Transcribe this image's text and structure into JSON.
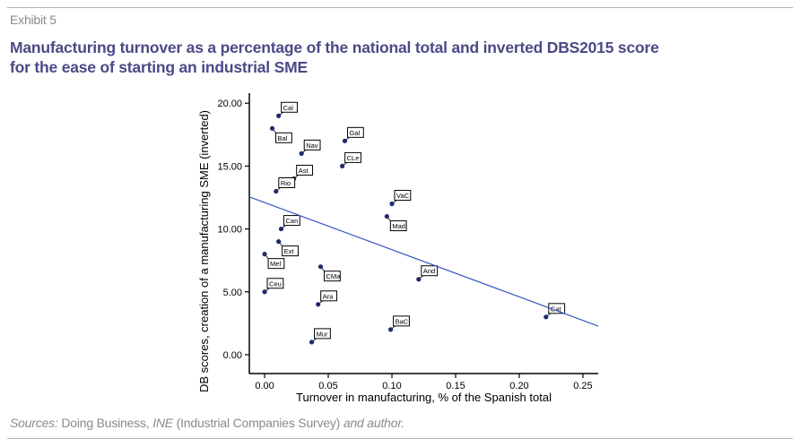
{
  "header": {
    "exhibit": "Exhibit 5",
    "title_line1": "Manufacturing turnover as a percentage of the national total and inverted DBS2015 score",
    "title_line2": "for the ease of starting an industrial SME"
  },
  "footer": {
    "sources_label": "Sources:",
    "sources_part1": " Doing Business, ",
    "sources_ine": "INE",
    "sources_part2": " (Industrial Companies Survey) ",
    "sources_part3": "and author."
  },
  "colors": {
    "title": "#4a4a87",
    "point": "#1f2a6b",
    "fit_line": "#3a56c4",
    "axis": "#000000"
  },
  "chart_data": {
    "type": "scatter",
    "title": "Manufacturing turnover as a percentage of the national total and inverted DBS2015 score for the ease of starting an industrial SME",
    "xlabel": "Turnover in manufacturing, % of the Spanish total",
    "ylabel": "DB scores, creation of a manufacturing SME (inverted)",
    "xlim": [
      -0.012,
      0.262
    ],
    "ylim": [
      -1.5,
      20.8
    ],
    "x_ticks": [
      0.0,
      0.05,
      0.1,
      0.15,
      0.2,
      0.25
    ],
    "x_tick_labels": [
      "0.00",
      "0.05",
      "0.10",
      "0.15",
      "0.20",
      "0.25"
    ],
    "y_ticks": [
      0,
      5,
      10,
      15,
      20
    ],
    "y_tick_labels": [
      "0.00",
      "5.00",
      "10.00",
      "15.00",
      "20.00"
    ],
    "grid": false,
    "legend": "none",
    "points": [
      {
        "label": "Cal",
        "x": 0.011,
        "y": 19,
        "label_pos": "upper-right"
      },
      {
        "label": "Bal",
        "x": 0.006,
        "y": 18,
        "label_pos": "lower-right"
      },
      {
        "label": "Gal",
        "x": 0.063,
        "y": 17,
        "label_pos": "upper-right"
      },
      {
        "label": "Nav",
        "x": 0.029,
        "y": 16,
        "label_pos": "upper-right"
      },
      {
        "label": "CLe",
        "x": 0.061,
        "y": 15,
        "label_pos": "upper-right"
      },
      {
        "label": "Ast",
        "x": 0.023,
        "y": 14,
        "label_pos": "upper-right"
      },
      {
        "label": "Rio",
        "x": 0.009,
        "y": 13,
        "label_pos": "upper-right"
      },
      {
        "label": "VaC",
        "x": 0.1,
        "y": 12,
        "label_pos": "upper-right"
      },
      {
        "label": "Mad",
        "x": 0.096,
        "y": 11,
        "label_pos": "lower-right"
      },
      {
        "label": "Can",
        "x": 0.013,
        "y": 10,
        "label_pos": "upper-right"
      },
      {
        "label": "Ext",
        "x": 0.011,
        "y": 9,
        "label_pos": "lower-right"
      },
      {
        "label": "Mel",
        "x": 0.0,
        "y": 8,
        "label_pos": "lower-right"
      },
      {
        "label": "CMa",
        "x": 0.044,
        "y": 7,
        "label_pos": "lower-right"
      },
      {
        "label": "And",
        "x": 0.121,
        "y": 6,
        "label_pos": "upper-right"
      },
      {
        "label": "Ceu",
        "x": 0.0,
        "y": 5,
        "label_pos": "upper-right"
      },
      {
        "label": "Ara",
        "x": 0.042,
        "y": 4,
        "label_pos": "upper-right"
      },
      {
        "label": "Cat",
        "x": 0.221,
        "y": 3,
        "label_pos": "upper-right"
      },
      {
        "label": "BaC",
        "x": 0.099,
        "y": 2,
        "label_pos": "upper-right"
      },
      {
        "label": "Mur",
        "x": 0.037,
        "y": 1,
        "label_pos": "upper-right"
      }
    ],
    "fit_line": {
      "type": "linear",
      "slope": -37.5,
      "intercept": 12.1,
      "x_range": [
        -0.012,
        0.262
      ]
    }
  }
}
